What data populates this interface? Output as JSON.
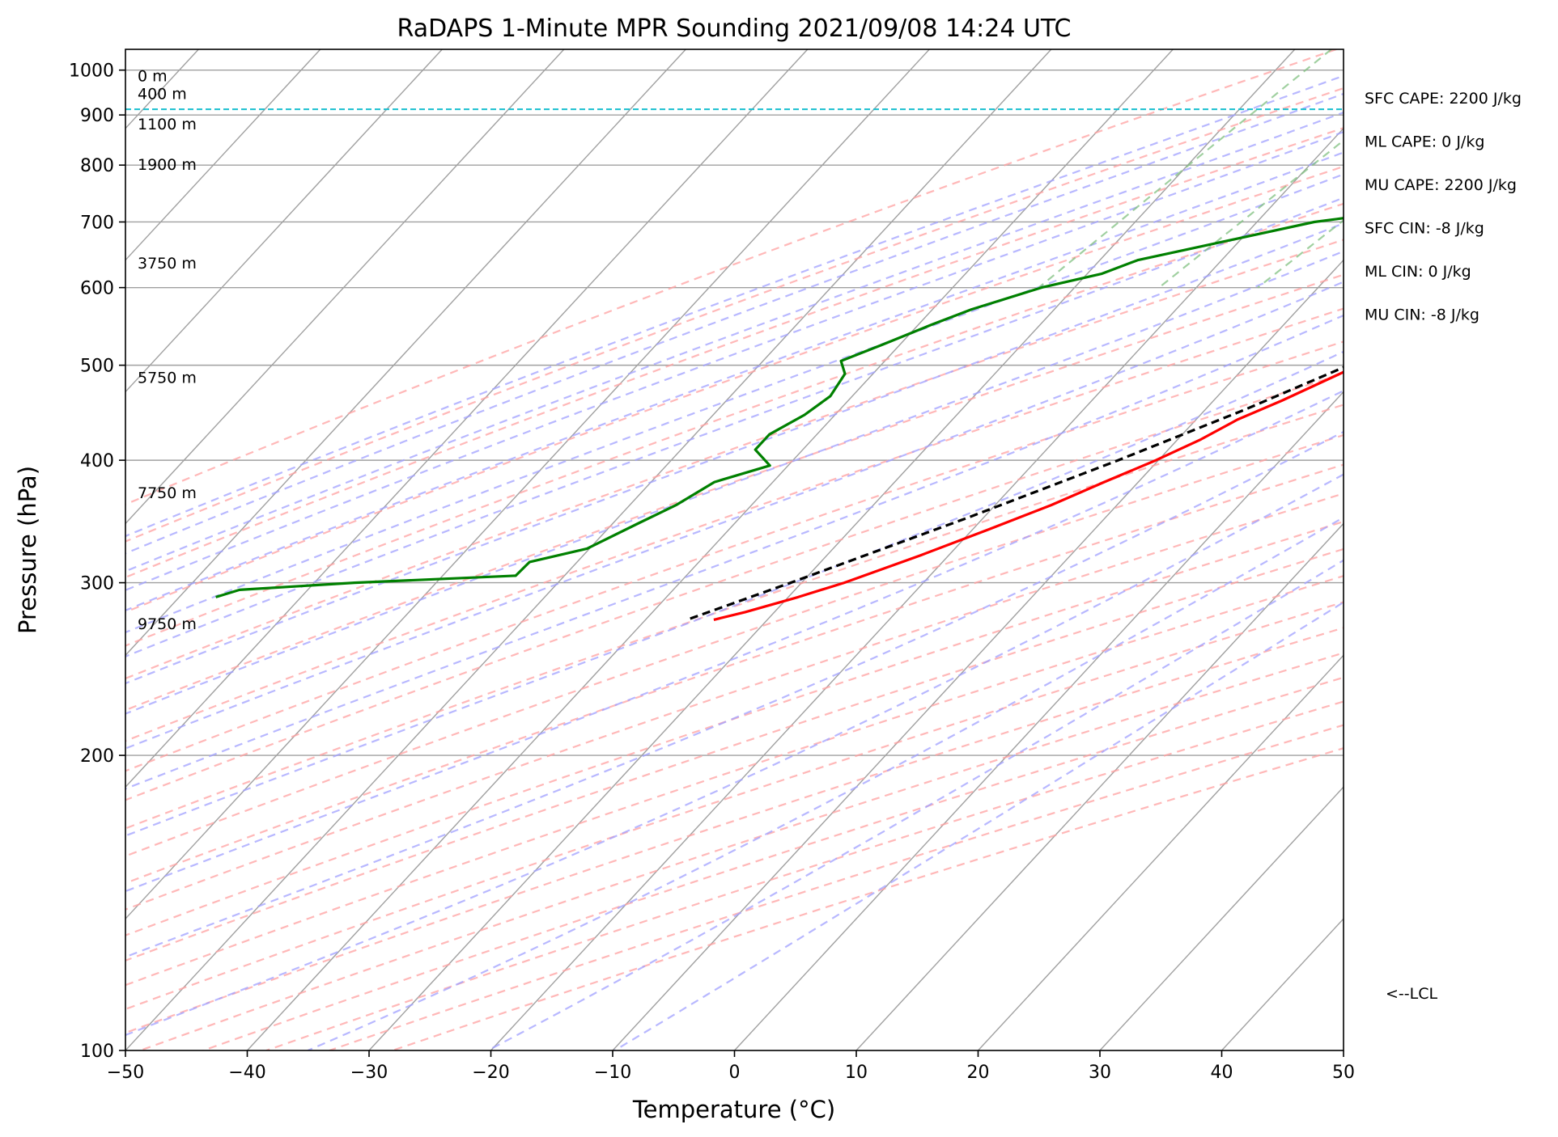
{
  "chart_data": {
    "type": "line",
    "title": "RaDAPS 1-Minute MPR Sounding 2021/09/08 14:24 UTC",
    "xlabel": "Temperature (°C)",
    "ylabel": "Pressure (hPa)",
    "xlim": [
      -50,
      50
    ],
    "ylim": [
      1050,
      100
    ],
    "y_scale": "log",
    "skew": true,
    "x_ticks": [
      -50,
      -40,
      -30,
      -20,
      -10,
      0,
      10,
      20,
      30,
      40,
      50
    ],
    "x_tick_labels": [
      "−50",
      "−40",
      "−30",
      "−20",
      "−10",
      "0",
      "10",
      "20",
      "30",
      "40",
      "50"
    ],
    "y_ticks": [
      100,
      200,
      300,
      400,
      500,
      600,
      700,
      800,
      900,
      1000
    ],
    "y_tick_labels": [
      "100",
      "200",
      "300",
      "400",
      "500",
      "600",
      "700",
      "800",
      "900",
      "1000"
    ],
    "series": [
      {
        "role": "temperature",
        "color": "#ff0000",
        "pressure": [
          985,
          950,
          925,
          900,
          880,
          860,
          850,
          830,
          810,
          790,
          770,
          750,
          720,
          700,
          650,
          600,
          560,
          520,
          500,
          460,
          440,
          420,
          400,
          380,
          360,
          340,
          320,
          300,
          290,
          280,
          275
        ],
        "temp": [
          27.6,
          25.3,
          23.7,
          21.9,
          20.6,
          19.8,
          19.3,
          18.9,
          17.9,
          17.2,
          16.5,
          15.9,
          15.1,
          14.4,
          11.2,
          7.4,
          5.0,
          1.6,
          -0.8,
          -4.4,
          -6.6,
          -8.1,
          -10.2,
          -12.8,
          -15.4,
          -18.7,
          -22.3,
          -26.5,
          -29.2,
          -32.4,
          -34.4
        ]
      },
      {
        "role": "dewpoint",
        "color": "#008000",
        "pressure": [
          985,
          980,
          975,
          970,
          965,
          955,
          945,
          935,
          925,
          915,
          905,
          895,
          880,
          860,
          845,
          825,
          810,
          795,
          770,
          750,
          735,
          700,
          640,
          620,
          600,
          570,
          550,
          525,
          505,
          490,
          465,
          445,
          425,
          410,
          395,
          380,
          360,
          345,
          325,
          315,
          305,
          300,
          295,
          290
        ],
        "temp": [
          22.1,
          18.9,
          16.2,
          14.0,
          11.3,
          10.7,
          10.3,
          10.6,
          9.8,
          9.0,
          8.0,
          7.8,
          7.7,
          8.0,
          8.0,
          9.3,
          8.8,
          6.5,
          3.4,
          2.0,
          -3.8,
          -15.3,
          -26.9,
          -28.8,
          -32.7,
          -36.8,
          -38.9,
          -41.4,
          -43.6,
          -42.3,
          -41.8,
          -42.5,
          -43.9,
          -43.9,
          -41.5,
          -44.8,
          -46.2,
          -47.9,
          -50.2,
          -53.9,
          -54.0,
          -66.7,
          -75.6,
          -77.0
        ]
      },
      {
        "role": "parcel",
        "color": "#000000",
        "style": "dashed",
        "pressure": [
          985,
          960,
          940,
          925,
          912,
          850,
          800,
          750,
          700,
          650,
          600,
          550,
          500,
          450,
          400,
          350,
          300,
          275
        ],
        "temp": [
          27.6,
          25.0,
          23.2,
          22.0,
          21.6,
          19.3,
          17.3,
          14.8,
          12.2,
          9.6,
          6.3,
          2.7,
          -1.6,
          -6.8,
          -13.3,
          -21.2,
          -30.9,
          -36.6
        ]
      }
    ],
    "lcl": {
      "pressure": 912,
      "label": "<--LCL",
      "color": "#17becf"
    },
    "height_labels": [
      {
        "pressure": 985,
        "label": "0 m"
      },
      {
        "pressure": 945,
        "label": "400 m"
      },
      {
        "pressure": 880,
        "label": "1100 m"
      },
      {
        "pressure": 800,
        "label": "1900 m"
      },
      {
        "pressure": 635,
        "label": "3750 m"
      },
      {
        "pressure": 485,
        "label": "5750 m"
      },
      {
        "pressure": 370,
        "label": "7750 m"
      },
      {
        "pressure": 272,
        "label": "9750 m"
      }
    ],
    "parameters": [
      "SFC CAPE: 2200 J/kg",
      "ML CAPE: 0 J/kg",
      "MU CAPE: 2200 J/kg",
      "SFC CIN: -8 J/kg",
      "ML CIN: 0 J/kg",
      "MU CIN: -8 J/kg"
    ],
    "background": {
      "isotherm_color": "#a0a0a0",
      "dry_adiabat_color": "#ffa0a0",
      "moist_adiabat_color": "#a0a0ff",
      "mixing_ratio_color": "#80c080"
    }
  }
}
